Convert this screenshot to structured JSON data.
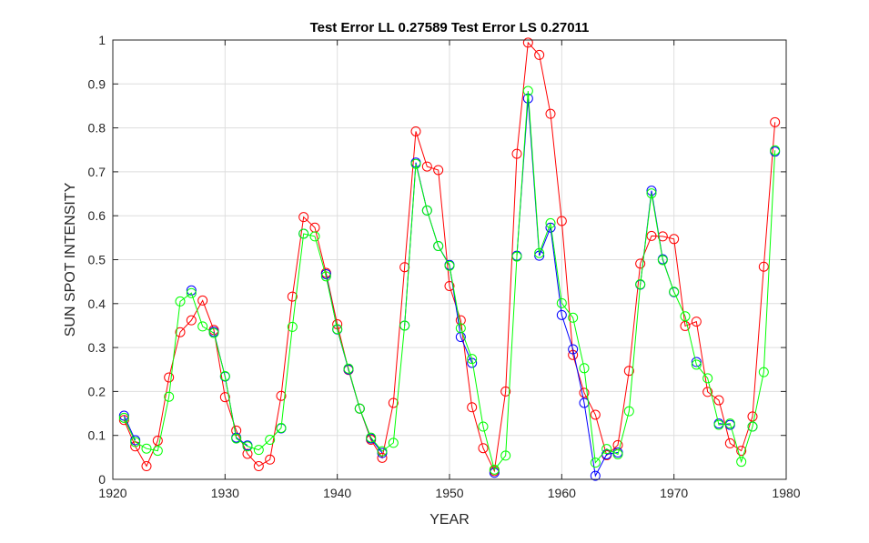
{
  "chart_data": {
    "type": "line",
    "title": "Test Error LL 0.27589 Test Error LS 0.27011",
    "xlabel": "YEAR",
    "ylabel": "SUN SPOT INTENSITY",
    "xlim": [
      1920,
      1980
    ],
    "ylim": [
      0,
      1
    ],
    "xticks": [
      "1920",
      "1930",
      "1940",
      "1950",
      "1960",
      "1970",
      "1980"
    ],
    "yticks": [
      "0",
      "0.1",
      "0.2",
      "0.3",
      "0.4",
      "0.5",
      "0.6",
      "0.7",
      "0.8",
      "0.9",
      "1"
    ],
    "grid": true,
    "legend": false,
    "x": [
      1921,
      1922,
      1923,
      1924,
      1925,
      1926,
      1927,
      1928,
      1929,
      1930,
      1931,
      1932,
      1933,
      1934,
      1935,
      1936,
      1937,
      1938,
      1939,
      1940,
      1941,
      1942,
      1943,
      1944,
      1945,
      1946,
      1947,
      1948,
      1949,
      1950,
      1951,
      1952,
      1953,
      1954,
      1955,
      1956,
      1957,
      1958,
      1959,
      1960,
      1961,
      1962,
      1963,
      1964,
      1965,
      1966,
      1967,
      1968,
      1969,
      1970,
      1971,
      1972,
      1973,
      1974,
      1975,
      1976,
      1977,
      1978,
      1979
    ],
    "series": [
      {
        "color": "#ff0000",
        "values": [
          0.135,
          0.075,
          0.03,
          0.088,
          0.232,
          0.335,
          0.362,
          0.407,
          0.34,
          0.187,
          0.111,
          0.058,
          0.03,
          0.045,
          0.19,
          0.416,
          0.597,
          0.573,
          0.47,
          0.353,
          0.249,
          0.161,
          0.09,
          0.049,
          0.174,
          0.483,
          0.792,
          0.712,
          0.704,
          0.44,
          0.362,
          0.164,
          0.071,
          0.019,
          0.2,
          0.741,
          0.994,
          0.966,
          0.832,
          0.588,
          0.283,
          0.197,
          0.147,
          0.055,
          0.078,
          0.247,
          0.491,
          0.554,
          0.553,
          0.547,
          0.349,
          0.359,
          0.199,
          0.18,
          0.082,
          0.065,
          0.143,
          0.484,
          0.813
        ]
      },
      {
        "color": "#0000ff",
        "values": [
          0.145,
          0.089,
          null,
          null,
          null,
          null,
          0.43,
          null,
          0.336,
          0.234,
          0.095,
          0.077,
          null,
          null,
          0.116,
          null,
          0.559,
          null,
          0.467,
          0.341,
          0.25,
          0.161,
          0.093,
          0.06,
          null,
          0.35,
          0.721,
          0.612,
          0.531,
          0.488,
          0.324,
          0.265,
          null,
          0.015,
          null,
          0.509,
          0.867,
          0.509,
          0.573,
          0.374,
          0.296,
          0.174,
          0.008,
          0.057,
          0.061,
          null,
          0.443,
          0.657,
          0.501,
          0.426,
          null,
          0.267,
          null,
          0.127,
          0.124,
          null,
          0.12,
          null,
          0.746
        ]
      },
      {
        "color": "#00ff00",
        "values": [
          0.14,
          0.085,
          0.07,
          0.065,
          0.188,
          0.405,
          0.424,
          0.348,
          0.333,
          0.235,
          0.093,
          0.075,
          0.067,
          0.09,
          0.117,
          0.347,
          0.559,
          0.553,
          0.462,
          0.342,
          0.252,
          0.161,
          0.095,
          0.064,
          0.083,
          0.35,
          0.718,
          0.612,
          0.531,
          0.486,
          0.344,
          0.274,
          0.12,
          0.022,
          0.054,
          0.507,
          0.884,
          0.515,
          0.583,
          0.401,
          0.368,
          0.253,
          0.038,
          0.069,
          0.057,
          0.155,
          0.444,
          0.651,
          0.499,
          0.427,
          0.371,
          0.261,
          0.23,
          0.124,
          0.127,
          0.04,
          0.12,
          0.244,
          0.749
        ]
      }
    ]
  }
}
